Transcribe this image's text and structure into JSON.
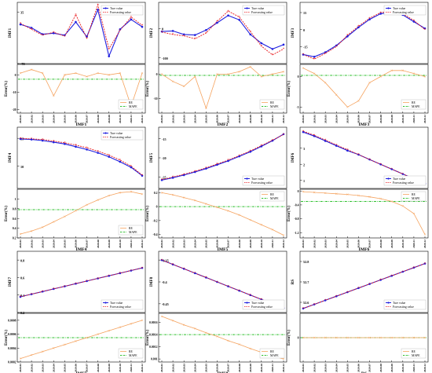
{
  "months": [
    "2020.01",
    "2020.02",
    "2020.03",
    "2020.04",
    "2020.05",
    "2020.06",
    "2020.07",
    "2020.08",
    "2020.09",
    "2020.10",
    "2020.11",
    "2020.12"
  ],
  "legend": {
    "true": "Ture value",
    "forecast": "Forecasting value",
    "re": "RE",
    "mape": "MAPE"
  },
  "colors": {
    "true": "#1f1fdf",
    "forecast": "#e8181c",
    "re": "#f5a25d",
    "mape": "#2fc02f"
  },
  "chart_data": [
    {
      "type": "line",
      "name": "IMF1",
      "xlabel": "IMF1",
      "top": {
        "ylabel": "IMF1",
        "ylim": [
          -70,
          55
        ],
        "yticks": [
          35,
          -70
        ],
        "true": [
          10,
          3,
          -10,
          -8,
          -12,
          15,
          -15,
          40,
          -55,
          0,
          20,
          5
        ],
        "forecast": [
          12,
          0,
          -12,
          -6,
          -14,
          30,
          -18,
          50,
          -40,
          -2,
          25,
          8
        ]
      },
      "bottom": {
        "ylabel": "Error(%)",
        "ylim": [
          -22,
          6
        ],
        "yticks": [
          0,
          -10,
          -20
        ],
        "re": [
          1,
          3,
          1,
          -12,
          0,
          1,
          -1,
          1,
          0,
          1,
          -18,
          1
        ],
        "mape": -2.5
      }
    },
    {
      "type": "line",
      "name": "IMF2",
      "xlabel": "IMF2",
      "top": {
        "ylabel": "IMF2",
        "ylim": [
          -120,
          90
        ],
        "yticks": [
          0,
          -100
        ],
        "true": [
          -10,
          -8,
          -20,
          -22,
          -5,
          20,
          45,
          30,
          -20,
          -50,
          -70,
          -55
        ],
        "forecast": [
          -12,
          -20,
          -25,
          -35,
          -15,
          25,
          60,
          40,
          -10,
          -60,
          -90,
          -70
        ]
      },
      "bottom": {
        "ylabel": "Error(%)",
        "ylim": [
          -16,
          4
        ],
        "yticks": [
          0,
          -10
        ],
        "re": [
          0,
          -3,
          -5,
          -1,
          -14,
          0,
          0,
          1,
          3,
          -1,
          0,
          1
        ],
        "mape": -0.5
      }
    },
    {
      "type": "line",
      "name": "IMF3",
      "xlabel": "IMF3",
      "top": {
        "ylabel": "IMF3",
        "ylim": [
          -30,
          24
        ],
        "yticks": [
          15,
          0,
          -15
        ],
        "true": [
          -22,
          -24,
          -20,
          -14,
          -6,
          2,
          9,
          14,
          15,
          13,
          7,
          1
        ],
        "forecast": [
          -22,
          -26,
          -21,
          -15,
          -5,
          3,
          10,
          15,
          16,
          14,
          8,
          0
        ]
      },
      "bottom": {
        "ylabel": "Error(%)",
        "ylim": [
          -6,
          2
        ],
        "yticks": [
          0,
          -5
        ],
        "re": [
          1.4,
          0.5,
          -1,
          -3,
          -5,
          -4,
          -1,
          0,
          1,
          1,
          0.5,
          0
        ],
        "mape": 0.2
      }
    },
    {
      "type": "line",
      "name": "IMF4",
      "xlabel": "IMF4",
      "top": {
        "ylabel": "IMF4",
        "ylim": [
          6,
          17
        ],
        "yticks": [
          15,
          10
        ],
        "true": [
          14.9,
          14.8,
          14.6,
          14.3,
          14,
          13.5,
          13,
          12.4,
          11.7,
          10.8,
          9.8,
          8.3
        ],
        "forecast": [
          15,
          14.9,
          14.8,
          14.5,
          14.2,
          13.8,
          13.3,
          12.7,
          12,
          11.1,
          10,
          8.4
        ]
      },
      "bottom": {
        "ylabel": "Error(%)",
        "ylim": [
          0.2,
          1.2
        ],
        "yticks": [
          1.0,
          0.8,
          0.6,
          0.4,
          0.2
        ],
        "re": [
          0.28,
          0.34,
          0.42,
          0.53,
          0.64,
          0.76,
          0.88,
          0.98,
          1.07,
          1.13,
          1.15,
          1.1
        ],
        "mape": 0.78
      }
    },
    {
      "type": "line",
      "name": "IMF5",
      "xlabel": "IMF5",
      "top": {
        "ylabel": "IMF5",
        "ylim": [
          -28,
          -12
        ],
        "yticks": [
          -15,
          -20,
          -25
        ],
        "true": [
          -25.8,
          -25.2,
          -24.5,
          -23.7,
          -22.8,
          -21.8,
          -20.8,
          -19.6,
          -18.4,
          -17,
          -15.5,
          -13.8
        ],
        "forecast": [
          -25.7,
          -25,
          -24.3,
          -23.5,
          -22.6,
          -21.6,
          -20.6,
          -19.4,
          -18.2,
          -16.8,
          -15.4,
          -13.9
        ]
      },
      "bottom": {
        "ylabel": "Error(%)",
        "ylim": [
          -0.45,
          0.25
        ],
        "yticks": [
          0.2,
          0.0,
          -0.2,
          -0.4
        ],
        "re": [
          0.2,
          0.17,
          0.13,
          0.09,
          0.04,
          -0.01,
          -0.06,
          -0.12,
          -0.19,
          -0.26,
          -0.33,
          -0.41
        ],
        "mape": 0.0
      }
    },
    {
      "type": "line",
      "name": "IMF6",
      "xlabel": "IMF6",
      "top": {
        "ylabel": "IMF6",
        "ylim": [
          0.5,
          4.3
        ],
        "yticks": [
          3,
          2,
          1
        ],
        "true": [
          4.0,
          3.75,
          3.45,
          3.15,
          2.85,
          2.6,
          2.3,
          2.0,
          1.7,
          1.4,
          1.1,
          0.8
        ],
        "forecast": [
          4.05,
          3.8,
          3.5,
          3.2,
          2.9,
          2.6,
          2.3,
          2.0,
          1.7,
          1.4,
          1.1,
          0.8
        ]
      },
      "bottom": {
        "ylabel": "Error(%)",
        "ylim": [
          -1.35,
          0.05
        ],
        "yticks": [
          0.0,
          -0.4,
          -0.8,
          -1.2
        ],
        "re": [
          -0.02,
          -0.04,
          -0.06,
          -0.08,
          -0.1,
          -0.13,
          -0.17,
          -0.22,
          -0.3,
          -0.43,
          -0.65,
          -1.25
        ],
        "mape": -0.3
      }
    },
    {
      "type": "line",
      "name": "IMF7",
      "xlabel": "IMF7",
      "top": {
        "ylabel": "IMF7",
        "ylim": [
          0.2,
          0.9
        ],
        "yticks": [
          0.8,
          0.6,
          0.4,
          0.2
        ],
        "true": [
          0.38,
          0.41,
          0.44,
          0.47,
          0.5,
          0.53,
          0.56,
          0.59,
          0.62,
          0.65,
          0.68,
          0.71
        ],
        "forecast": [
          0.38,
          0.41,
          0.44,
          0.47,
          0.5,
          0.53,
          0.56,
          0.59,
          0.62,
          0.65,
          0.68,
          0.71
        ]
      },
      "bottom": {
        "ylabel": "Error(%)",
        "ylim": [
          0.0002,
          0.0009
        ],
        "yticks": [
          0.0008,
          0.0006,
          0.0004,
          0.0002
        ],
        "re": [
          0.00025,
          0.0003,
          0.00035,
          0.0004,
          0.00045,
          0.0005,
          0.00055,
          0.0006,
          0.00065,
          0.0007,
          0.00075,
          0.0008
        ],
        "mape": 0.00055
      }
    },
    {
      "type": "line",
      "name": "IMF8",
      "xlabel": "IMF8",
      "top": {
        "ylabel": "IMF8",
        "ylim": [
          -0.47,
          -0.33
        ],
        "yticks": [
          -0.35,
          -0.4,
          -0.45
        ],
        "true": [
          -0.35,
          -0.36,
          -0.37,
          -0.38,
          -0.39,
          -0.4,
          -0.41,
          -0.42,
          -0.43,
          -0.44,
          -0.45,
          -0.46
        ],
        "forecast": [
          -0.35,
          -0.36,
          -0.37,
          -0.38,
          -0.39,
          -0.4,
          -0.41,
          -0.42,
          -0.43,
          -0.44,
          -0.45,
          -0.46
        ]
      },
      "bottom": {
        "ylabel": "Error(%)",
        "ylim": [
          0.00095,
          0.00175
        ],
        "yticks": [
          0.0016,
          0.0014,
          0.0012,
          0.001
        ],
        "re": [
          0.0017,
          0.00163,
          0.00156,
          0.0015,
          0.00143,
          0.00137,
          0.0013,
          0.00124,
          0.00117,
          0.00111,
          0.00105,
          0.001
        ],
        "mape": 0.0014
      }
    },
    {
      "type": "line",
      "name": "RS",
      "xlabel": "RS",
      "top": {
        "ylabel": "RS",
        "ylim": [
          52.55,
          52.85
        ],
        "yticks": [
          52.8,
          52.7,
          52.6
        ],
        "true": [
          52.57,
          52.59,
          52.61,
          52.63,
          52.65,
          52.67,
          52.69,
          52.71,
          52.73,
          52.75,
          52.77,
          52.79
        ],
        "forecast": [
          52.57,
          52.59,
          52.61,
          52.63,
          52.65,
          52.67,
          52.69,
          52.71,
          52.73,
          52.75,
          52.77,
          52.79
        ]
      },
      "bottom": {
        "ylabel": "Error(%)",
        "ylim": [
          -1,
          1
        ],
        "yticks": [
          0
        ],
        "re": [
          0,
          0,
          0,
          0,
          0,
          0,
          0,
          0,
          0,
          0,
          0,
          0
        ],
        "mape": 0
      }
    }
  ]
}
